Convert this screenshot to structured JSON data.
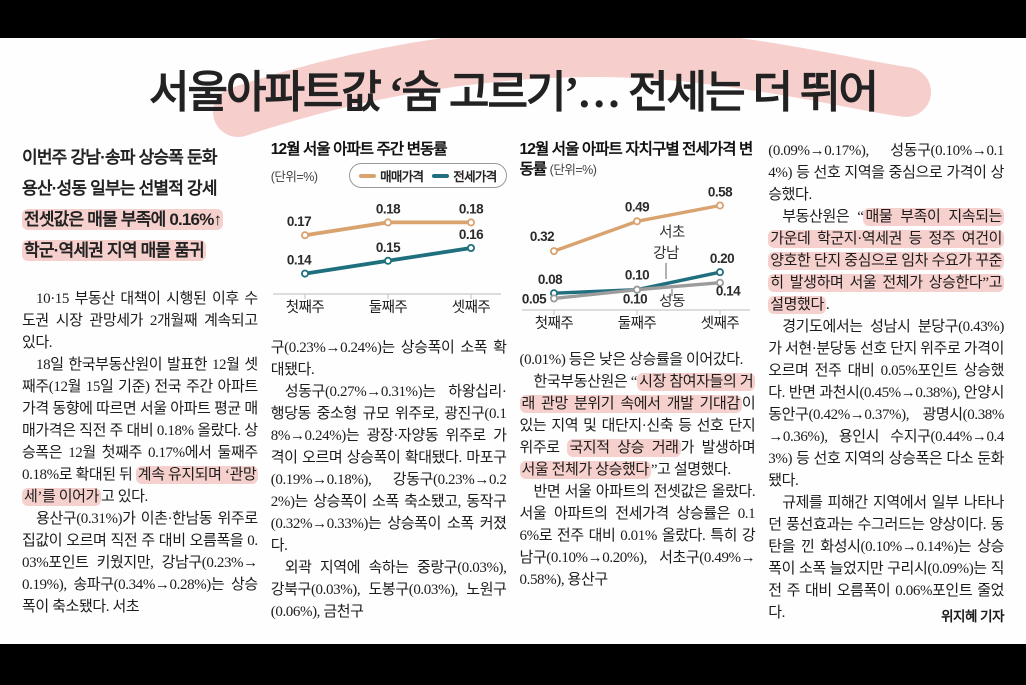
{
  "headline": "서울아파트값 ‘숨 고르기’… 전세는 더 뛰어",
  "colors": {
    "highlight_pink": "#F2ABA6",
    "sale_line": "#D8A36E",
    "jeonse_line": "#1F6F7E",
    "seongdong_line": "#9C9C9C",
    "axis": "#C9C9C9",
    "text": "#1C1C1C"
  },
  "deck": {
    "lines": [
      {
        "segments": [
          {
            "t": "이번주 강남·송파 상승폭 둔화",
            "h": false
          }
        ]
      },
      {
        "segments": [
          {
            "t": "용산·성동 일부는 선별적 강세",
            "h": false
          }
        ]
      },
      {
        "segments": [
          {
            "t": "전셋값은 매물 부족에 0.16%↑",
            "h": true
          }
        ]
      },
      {
        "segments": [
          {
            "t": "학군·역세권 지역 매물 품귀",
            "h": true
          }
        ]
      }
    ]
  },
  "chart_data": [
    {
      "type": "line",
      "title": "12월 서울 아파트 주간 변동률",
      "unit_label": "(단위=%)",
      "categories": [
        "첫째주",
        "둘째주",
        "셋째주"
      ],
      "series": [
        {
          "name": "매매가격",
          "values": [
            0.17,
            0.18,
            0.18
          ],
          "color": "#D8A36E"
        },
        {
          "name": "전세가격",
          "values": [
            0.14,
            0.15,
            0.16
          ],
          "color": "#1F6F7E"
        }
      ],
      "ylim": [
        0.135,
        0.185
      ],
      "legend_position": "top",
      "grid": false
    },
    {
      "type": "line",
      "title": "12월 서울 아파트 자치구별 전세가격 변동률",
      "unit_label": "(단위=%)",
      "categories": [
        "첫째주",
        "둘째주",
        "셋째주"
      ],
      "series": [
        {
          "name": "서초",
          "values": [
            0.32,
            0.49,
            0.58
          ],
          "color": "#D8A36E"
        },
        {
          "name": "강남",
          "values": [
            0.08,
            0.1,
            0.2
          ],
          "color": "#1F6F7E"
        },
        {
          "name": "성동",
          "values": [
            0.05,
            0.1,
            0.14
          ],
          "color": "#9C9C9C"
        }
      ],
      "ylim": [
        0.03,
        0.6
      ],
      "legend_position": "inline-labels",
      "grid": false
    }
  ],
  "columns": [
    {
      "paragraphs": [
        {
          "indent": true,
          "segments": [
            {
              "t": "10·15 부동산 대책이 시행된 이후 수도권 시장 관망세가 2개월째 계속되고 있다.",
              "h": false
            }
          ]
        },
        {
          "indent": true,
          "segments": [
            {
              "t": "18일 한국부동산원이 발표한 12월 셋째주(12월 15일 기준) 전국 주간 아파트 가격 동향에 따르면 서울 아파트 평균 매매가격은 직전 주 대비 0.18% 올랐다. 상승폭은 12월 첫째주 0.17%에서 둘째주 0.18%로 확대된 뒤 ",
              "h": false
            },
            {
              "t": "계속 유지되며 ‘관망세’를 이어가",
              "h": true
            },
            {
              "t": "고 있다.",
              "h": false
            }
          ]
        },
        {
          "indent": true,
          "segments": [
            {
              "t": "용산구(0.31%)가 이촌·한남동 위주로 집값이 오르며 직전 주 대비 오름폭을 0.03%포인트 키웠지만, 강남구(0.23%→0.19%), 송파구(0.34%→0.28%)는 상승폭이 축소됐다. 서초",
              "h": false
            }
          ]
        }
      ]
    },
    {
      "paragraphs": [
        {
          "indent": false,
          "segments": [
            {
              "t": "구(0.23%→0.24%)는 상승폭이 소폭 확대됐다.",
              "h": false
            }
          ]
        },
        {
          "indent": true,
          "segments": [
            {
              "t": "성동구(0.27%→0.31%)는 하왕십리·행당동 중소형 규모 위주로, 광진구(0.18%→0.24%)는 광장·자양동 위주로 가격이 오르며 상승폭이 확대됐다. 마포구(0.19%→0.18%), 강동구(0.23%→0.22%)는 상승폭이 소폭 축소됐고, 동작구(0.32%→0.33%)는 상승폭이 소폭 커졌다.",
              "h": false
            }
          ]
        },
        {
          "indent": true,
          "segments": [
            {
              "t": "외곽 지역에 속하는 중랑구(0.03%), 강북구(0.03%), 도봉구(0.03%), 노원구(0.06%), 금천구",
              "h": false
            }
          ]
        }
      ]
    },
    {
      "paragraphs": [
        {
          "indent": false,
          "segments": [
            {
              "t": "(0.01%) 등은 낮은 상승률을 이어갔다.",
              "h": false
            }
          ]
        },
        {
          "indent": true,
          "segments": [
            {
              "t": "한국부동산원은 “",
              "h": false
            },
            {
              "t": "시장 참여자들의 거래 관망 분위기 속에서 개발 기대감",
              "h": true
            },
            {
              "t": "이 있는 지역 및 대단지·신축 등 선호 단지 위주로 ",
              "h": false
            },
            {
              "t": "국지적 상승 거래",
              "h": true
            },
            {
              "t": "가 발생하며 ",
              "h": false
            },
            {
              "t": "서울 전체가 상승했다",
              "h": true
            },
            {
              "t": "”고 설명했다.",
              "h": false
            }
          ]
        },
        {
          "indent": true,
          "segments": [
            {
              "t": "반면 서울 아파트의 전셋값은 올랐다. 서울 아파트의 전세가격 상승률은 0.16%로 전주 대비 0.01% 올랐다. 특히 강남구(0.10%→0.20%), 서초구(0.49%→0.58%), 용산구",
              "h": false
            }
          ]
        }
      ]
    },
    {
      "paragraphs": [
        {
          "indent": false,
          "segments": [
            {
              "t": "(0.09%→0.17%), 성동구(0.10%→0.14%) 등 선호 지역을 중심으로 가격이 상승했다.",
              "h": false
            }
          ]
        },
        {
          "indent": true,
          "segments": [
            {
              "t": "부동산원은 “",
              "h": false
            },
            {
              "t": "매물 부족이 지속되는 가운데 학군지·역세권 등 정주 여건이 양호한 단지 중심으로 임차 수요가 꾸준히 발생하며 서울 전체가 상승한다”고 설명했다",
              "h": true
            },
            {
              "t": ".",
              "h": false
            }
          ]
        },
        {
          "indent": true,
          "segments": [
            {
              "t": "경기도에서는 성남시 분당구(0.43%)가 서현·분당동 선호 단지 위주로 가격이 오르며 전주 대비 0.05%포인트 상승했다. 반면 과천시(0.45%→0.38%), 안양시 동안구(0.42%→0.37%), 광명시(0.38%→0.36%), 용인시 수지구(0.44%→0.43%) 등 선호 지역의 상승폭은 다소 둔화됐다.",
              "h": false
            }
          ]
        },
        {
          "indent": true,
          "segments": [
            {
              "t": "규제를 피해간 지역에서 일부 나타나던 풍선효과는 수그러드는 양상이다. 동탄을 낀 화성시(0.10%→0.14%)는 상승폭이 소폭 늘었지만 구리시(0.09%)는 직전 주 대비 오름폭이 0.06%포인트 줄었다.",
              "h": false
            },
            {
              "t": "위지혜 기자",
              "h": false,
              "byline": true
            }
          ]
        }
      ]
    }
  ]
}
